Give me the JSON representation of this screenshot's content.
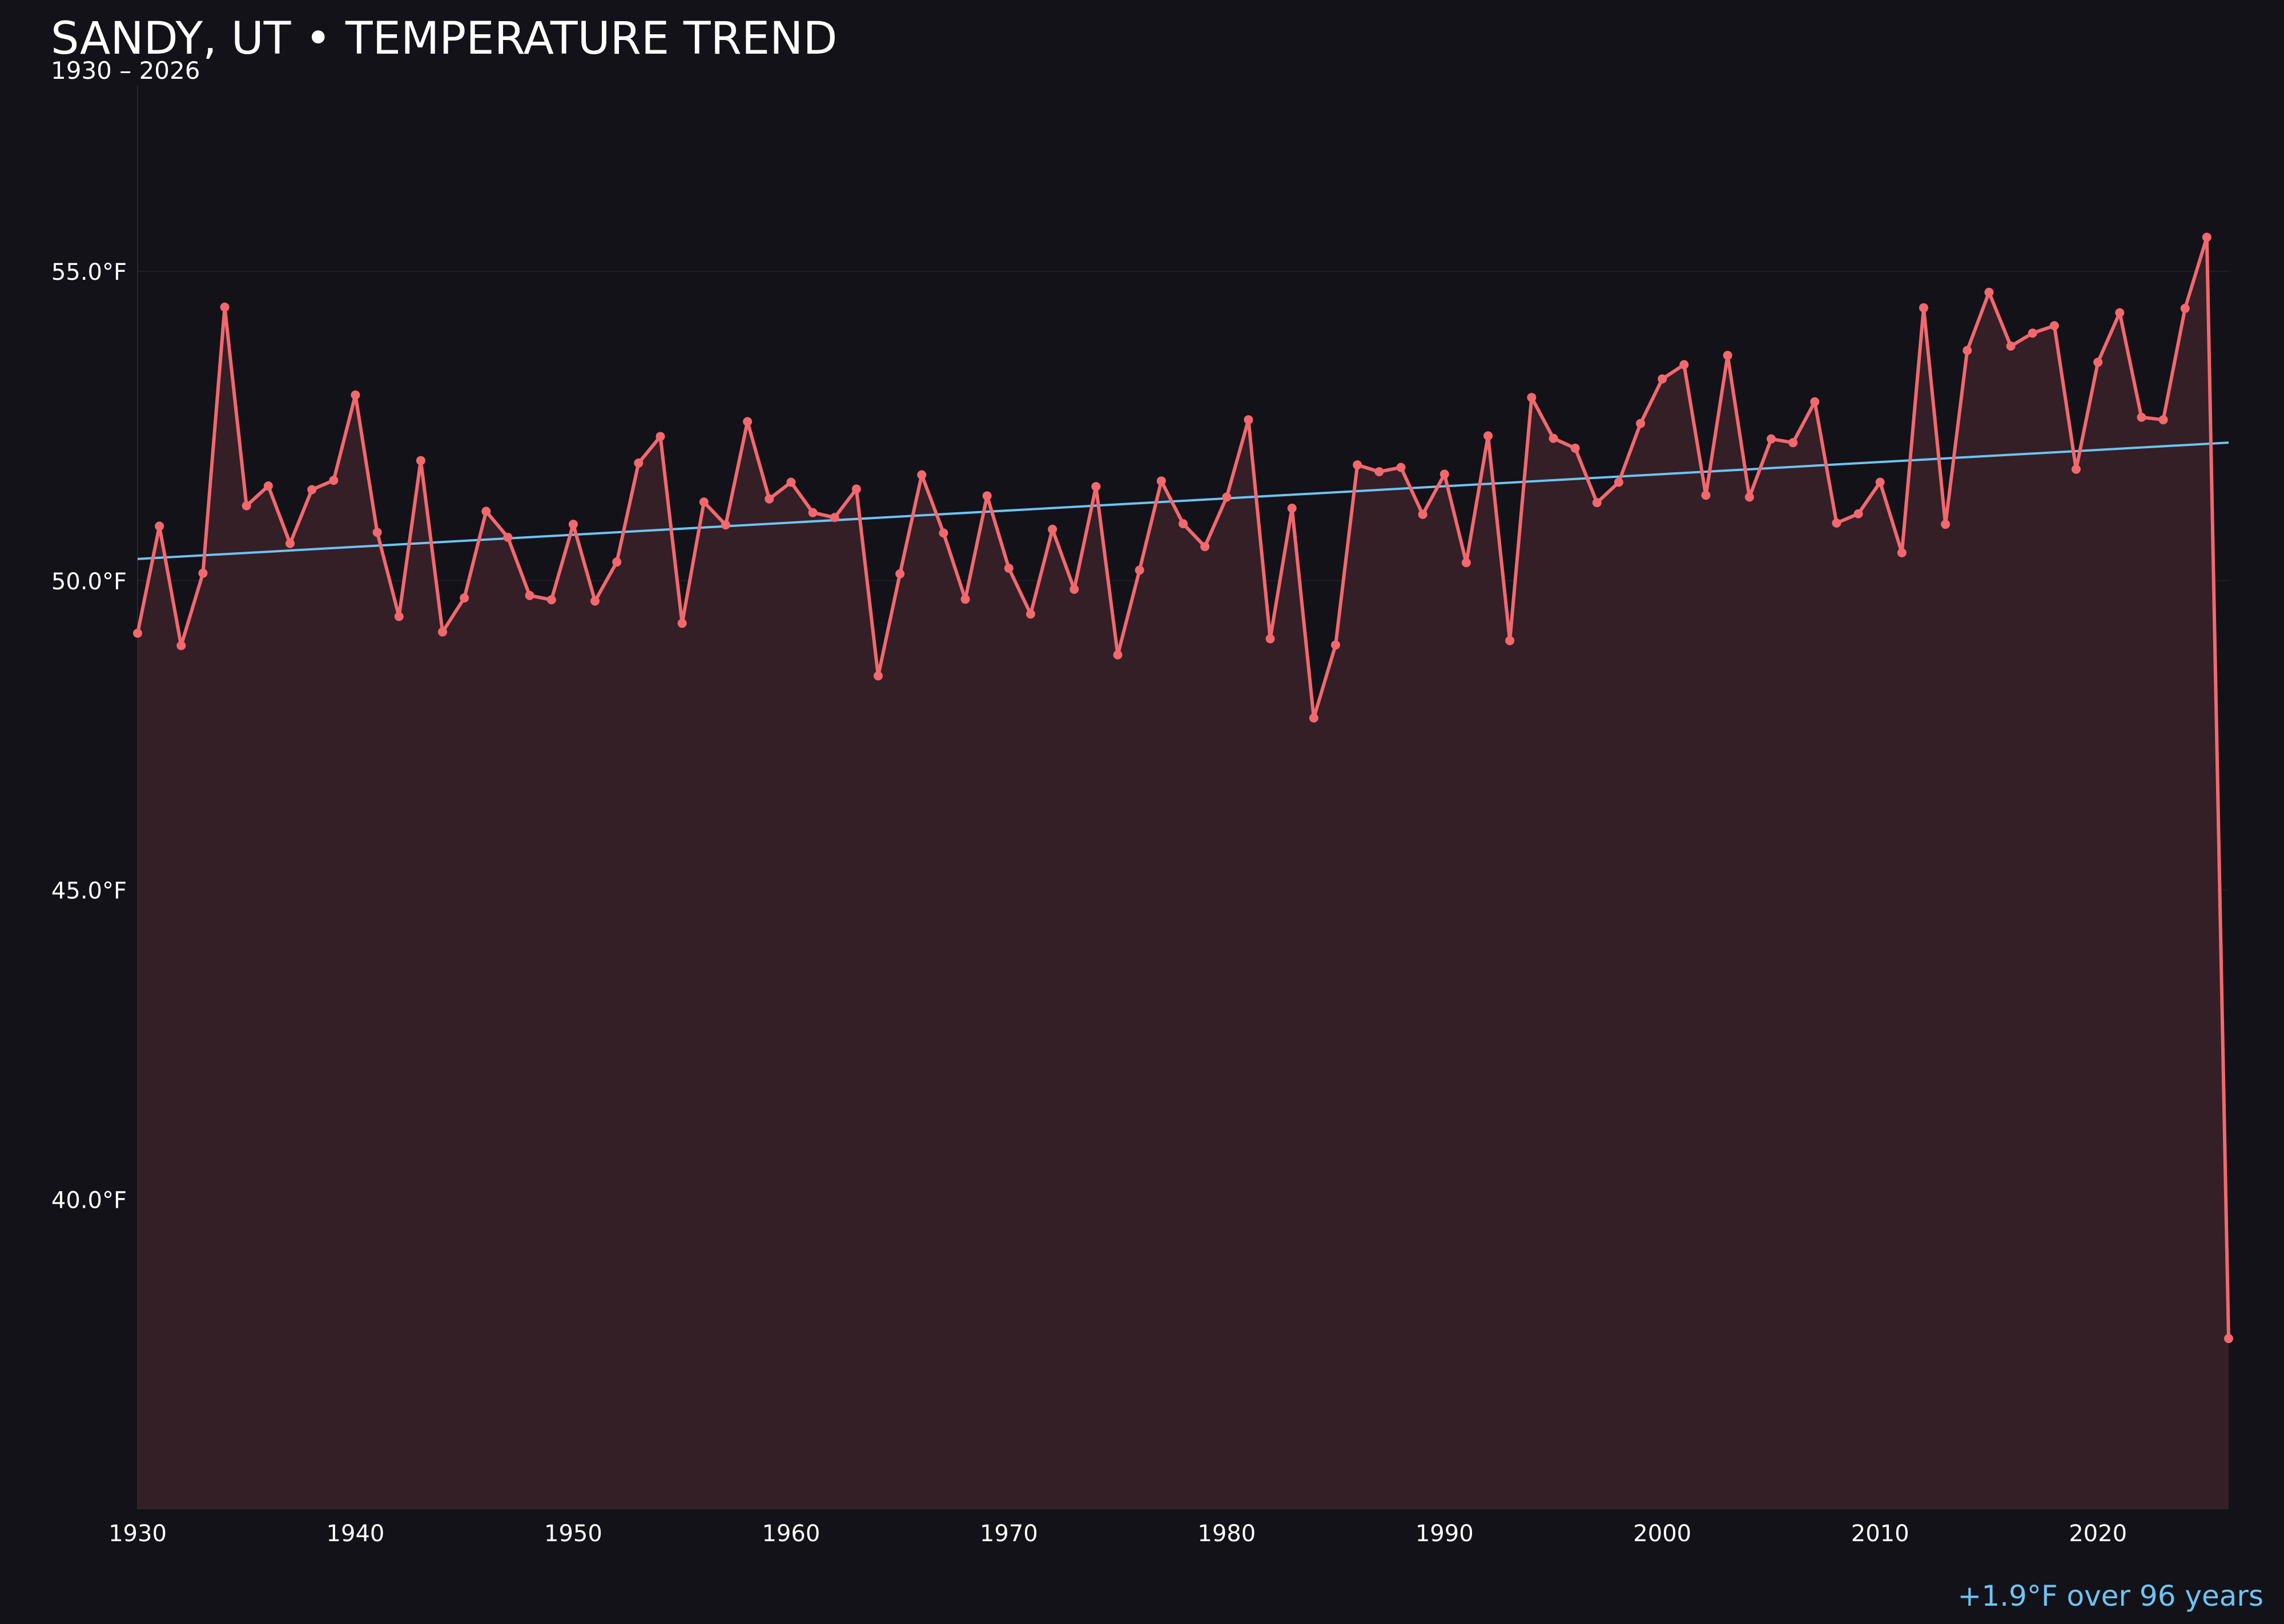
{
  "chart_data": {
    "type": "line",
    "title": "SANDY, UT • TEMPERATURE TREND",
    "subtitle": "1930 – 2026",
    "xlabel": "",
    "ylabel": "",
    "xlim": [
      1930,
      2026
    ],
    "ylim": [
      35.0,
      58.0
    ],
    "x_ticks": [
      1930,
      1940,
      1950,
      1960,
      1970,
      1980,
      1990,
      2000,
      2010,
      2020
    ],
    "y_ticks": [
      40.0,
      45.0,
      50.0,
      55.0
    ],
    "y_tick_suffix": "°F",
    "grid": "horizontal",
    "annotation": "+1.9°F over 96 years",
    "colors": {
      "background": "#131218",
      "line": "#f2686f",
      "fill": "#341f26",
      "trend": "#6ec3f4",
      "grid": "#221f26",
      "annotation": "#6ec3f4"
    },
    "series": [
      {
        "x": [
          1930,
          1931,
          1932,
          1933,
          1934,
          1935,
          1936,
          1937,
          1938,
          1939,
          1940,
          1941,
          1942,
          1943,
          1944,
          1945,
          1946,
          1947,
          1948,
          1949,
          1950,
          1951,
          1952,
          1953,
          1954,
          1955,
          1956,
          1957,
          1958,
          1959,
          1960,
          1961,
          1962,
          1963,
          1964,
          1965,
          1966,
          1967,
          1968,
          1969,
          1970,
          1971,
          1972,
          1973,
          1974,
          1975,
          1976,
          1977,
          1978,
          1979,
          1980,
          1981,
          1982,
          1983,
          1984,
          1985,
          1986,
          1987,
          1988,
          1989,
          1990,
          1991,
          1992,
          1993,
          1994,
          1995,
          1996,
          1997,
          1998,
          1999,
          2000,
          2001,
          2002,
          2003,
          2004,
          2005,
          2006,
          2007,
          2008,
          2009,
          2010,
          2011,
          2012,
          2013,
          2014,
          2015,
          2016,
          2017,
          2018,
          2019,
          2020,
          2021,
          2022,
          2023,
          2024,
          2025,
          2026
        ],
        "values": [
          49.15,
          50.88,
          48.95,
          50.12,
          54.42,
          51.21,
          51.53,
          50.6,
          51.47,
          51.62,
          53.0,
          50.78,
          49.42,
          51.94,
          49.17,
          49.72,
          51.12,
          50.7,
          49.76,
          49.69,
          50.91,
          49.67,
          50.3,
          51.9,
          52.33,
          49.31,
          51.27,
          50.9,
          52.57,
          51.32,
          51.59,
          51.1,
          51.02,
          51.48,
          48.46,
          50.11,
          51.71,
          50.77,
          49.7,
          51.37,
          50.2,
          49.46,
          50.83,
          49.86,
          51.52,
          48.8,
          50.17,
          51.61,
          50.92,
          50.55,
          51.35,
          52.6,
          49.06,
          51.17,
          47.78,
          48.96,
          51.87,
          51.76,
          51.83,
          51.07,
          51.72,
          50.29,
          52.34,
          49.03,
          52.96,
          52.3,
          52.14,
          51.26,
          51.59,
          52.54,
          53.26,
          53.49,
          51.38,
          53.64,
          51.35,
          52.29,
          52.23,
          52.89,
          50.93,
          51.08,
          51.59,
          50.45,
          54.41,
          50.91,
          53.72,
          54.66,
          53.79,
          54.0,
          54.12,
          51.8,
          53.53,
          54.33,
          52.64,
          52.6,
          54.4,
          55.55,
          37.75
        ]
      }
    ],
    "trend_line": {
      "x": [
        1930,
        2026
      ],
      "values": [
        50.35,
        52.23
      ]
    }
  }
}
